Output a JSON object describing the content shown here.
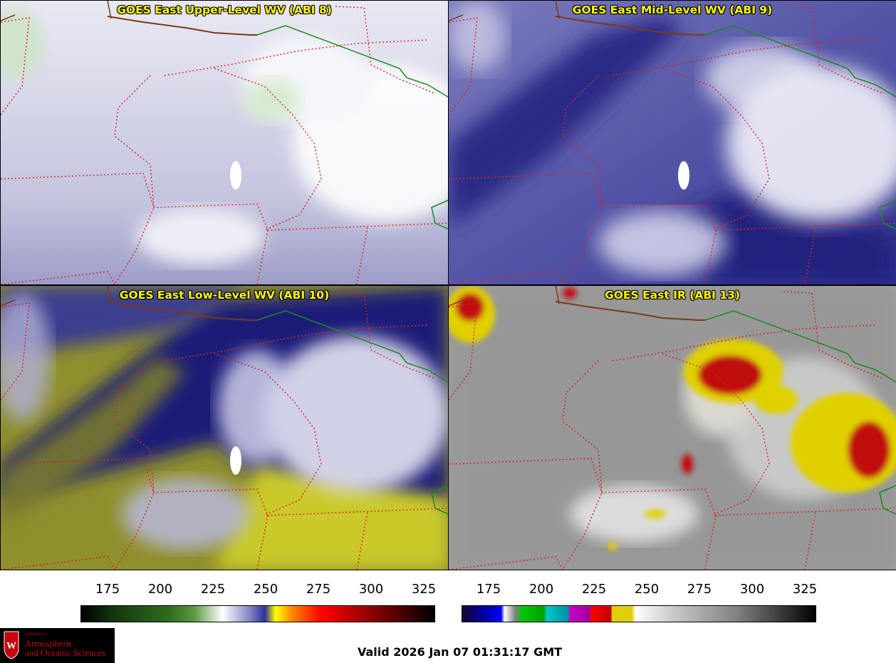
{
  "panels": {
    "upper": {
      "title": "GOES East Upper-Level WV (ABI 8)"
    },
    "mid": {
      "title": "GOES East Mid-Level WV (ABI 9)"
    },
    "low": {
      "title": "GOES East Low-Level WV (ABI 10)"
    },
    "ir": {
      "title": "GOES East IR (ABI 13)"
    }
  },
  "colorbar_left": {
    "ticks": [
      "175",
      "200",
      "225",
      "250",
      "275",
      "300",
      "325"
    ],
    "colors": [
      "#000000",
      "#2f6e1e",
      "#ffffff",
      "#2f2f9a",
      "#ffff00",
      "#ff0000",
      "#000000"
    ]
  },
  "colorbar_right": {
    "ticks": [
      "175",
      "200",
      "225",
      "250",
      "275",
      "300",
      "325"
    ],
    "colors": [
      "#000000",
      "#0000c8",
      "#00c800",
      "#c800c8",
      "#ff0000",
      "#ffff00",
      "#ffffff",
      "#000000"
    ]
  },
  "logo": {
    "line1": "Department of",
    "line2": "Atmospheric",
    "line3": "and Oceanic Sciences"
  },
  "valid_time": "Valid 2026 Jan 07 01:31:17 GMT"
}
